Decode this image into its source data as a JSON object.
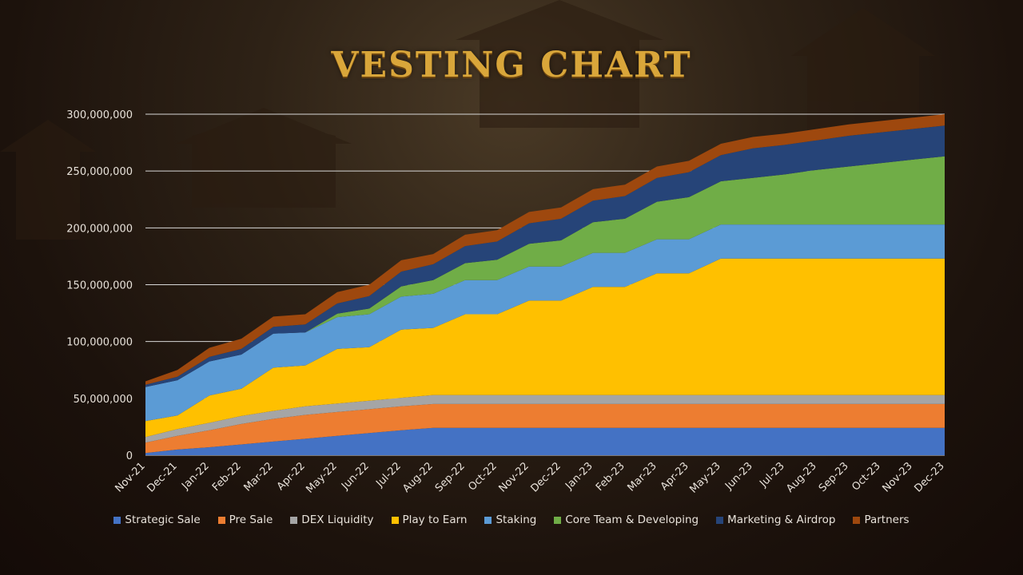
{
  "title": "VESTING CHART",
  "chart_data": {
    "type": "area",
    "stacked": true,
    "title": "VESTING CHART",
    "xlabel": "",
    "ylabel": "",
    "ylim": [
      0,
      300000000
    ],
    "y_ticks": [
      "0",
      "50,000,000",
      "100,000,000",
      "150,000,000",
      "200,000,000",
      "250,000,000",
      "300,000,000"
    ],
    "grid": true,
    "legend": "bottom",
    "categories": [
      "Nov-21",
      "Dec-21",
      "Jan-22",
      "Feb-22",
      "Mar-22",
      "Apr-22",
      "May-22",
      "Jun-22",
      "Jul-22",
      "Aug-22",
      "Sep-22",
      "Oct-22",
      "Nov-22",
      "Dec-22",
      "Jan-23",
      "Feb-23",
      "Mar-23",
      "Apr-23",
      "May-23",
      "Jun-23",
      "Jul-23",
      "Aug-23",
      "Sep-23",
      "Oct-23",
      "Nov-23",
      "Dec-23"
    ],
    "series": [
      {
        "name": "Strategic Sale",
        "color": "#4472c4",
        "values": [
          2000000,
          5000000,
          7000000,
          9500000,
          12000000,
          14500000,
          17000000,
          19500000,
          22000000,
          24000000,
          24000000,
          24000000,
          24000000,
          24000000,
          24000000,
          24000000,
          24000000,
          24000000,
          24000000,
          24000000,
          24000000,
          24000000,
          24000000,
          24000000,
          24000000,
          24000000
        ]
      },
      {
        "name": "Pre Sale",
        "color": "#ed7d31",
        "values": [
          9000000,
          12000000,
          15000000,
          18000000,
          20000000,
          21000000,
          21000000,
          21000000,
          21000000,
          21000000,
          21000000,
          21000000,
          21000000,
          21000000,
          21000000,
          21000000,
          21000000,
          21000000,
          21000000,
          21000000,
          21000000,
          21000000,
          21000000,
          21000000,
          21000000,
          21000000
        ]
      },
      {
        "name": "DEX Liquidity",
        "color": "#a5a5a5",
        "values": [
          5000000,
          6000000,
          6500000,
          7000000,
          7000000,
          7500000,
          7500000,
          7500000,
          7500000,
          8000000,
          8000000,
          8000000,
          8000000,
          8000000,
          8000000,
          8000000,
          8000000,
          8000000,
          8000000,
          8000000,
          8000000,
          8000000,
          8000000,
          8000000,
          8000000,
          8000000
        ]
      },
      {
        "name": "Play to Earn",
        "color": "#ffc000",
        "values": [
          14000000,
          12000000,
          24000000,
          24000000,
          38000000,
          36000000,
          48000000,
          47000000,
          60000000,
          59000000,
          71000000,
          71000000,
          83000000,
          83000000,
          95000000,
          95000000,
          107000000,
          107000000,
          120000000,
          120000000,
          120000000,
          120000000,
          120000000,
          120000000,
          120000000,
          120000000
        ]
      },
      {
        "name": "Staking",
        "color": "#5b9bd5",
        "values": [
          30000000,
          31000000,
          30000000,
          30000000,
          30000000,
          29000000,
          28000000,
          29000000,
          29000000,
          30000000,
          30000000,
          30000000,
          30000000,
          30000000,
          30000000,
          30000000,
          30000000,
          30000000,
          30000000,
          30000000,
          30000000,
          30000000,
          30000000,
          30000000,
          30000000,
          30000000
        ]
      },
      {
        "name": "Core Team & Developing",
        "color": "#70ad47",
        "values": [
          0,
          0,
          0,
          0,
          0,
          0,
          3000000,
          5000000,
          9000000,
          12000000,
          15000000,
          18000000,
          20000000,
          23000000,
          27000000,
          30000000,
          33000000,
          37000000,
          38000000,
          41000000,
          44000000,
          48000000,
          51000000,
          54000000,
          57000000,
          60000000
        ]
      },
      {
        "name": "Marketing & Airdrop",
        "color": "#264478",
        "values": [
          2000000,
          3000000,
          4000000,
          5000000,
          6000000,
          7000000,
          9000000,
          11000000,
          13000000,
          14000000,
          15000000,
          16000000,
          18000000,
          19000000,
          19000000,
          20000000,
          21000000,
          22000000,
          23000000,
          26000000,
          26000000,
          26000000,
          27000000,
          27000000,
          27000000,
          27000000
        ]
      },
      {
        "name": "Partners",
        "color": "#9e480e",
        "values": [
          3000000,
          6000000,
          8000000,
          9000000,
          9000000,
          9000000,
          10000000,
          10000000,
          10000000,
          9000000,
          10000000,
          10000000,
          10000000,
          10000000,
          10000000,
          10000000,
          10000000,
          10000000,
          10000000,
          10000000,
          10000000,
          10000000,
          10000000,
          10000000,
          10000000,
          10000000
        ]
      }
    ]
  },
  "colors": {
    "title": "#d9a63a",
    "text": "#e8e2da",
    "grid": "#d8d8d8"
  }
}
